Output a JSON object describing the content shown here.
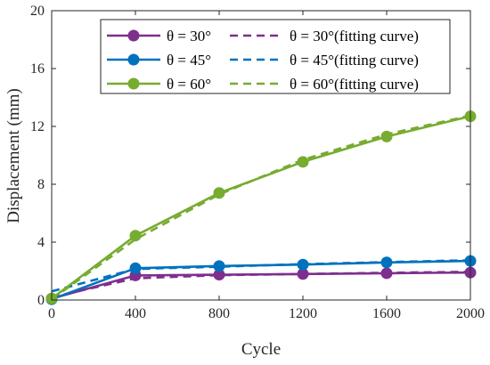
{
  "chart_data": {
    "type": "line",
    "xlabel": "Cycle",
    "ylabel": "Displacement (mm)",
    "xlim": [
      0,
      2000
    ],
    "ylim": [
      0,
      20
    ],
    "xticks": [
      0,
      400,
      800,
      1200,
      1600,
      2000
    ],
    "yticks": [
      0,
      4,
      8,
      12,
      16,
      20
    ],
    "grid": false,
    "legend_position": "top-right",
    "x": [
      0,
      400,
      800,
      1200,
      1600,
      2000
    ],
    "series": [
      {
        "name": "θ = 30°",
        "color": "#7E2F8E",
        "style": "solid-marker",
        "values": [
          0.1,
          1.7,
          1.75,
          1.8,
          1.85,
          1.9
        ]
      },
      {
        "name": "θ = 45°",
        "color": "#0072BD",
        "style": "solid-marker",
        "values": [
          0.05,
          2.2,
          2.35,
          2.45,
          2.6,
          2.7
        ]
      },
      {
        "name": "θ = 60°",
        "color": "#77AC30",
        "style": "solid-marker",
        "values": [
          0.1,
          4.45,
          7.4,
          9.55,
          11.3,
          12.7
        ]
      },
      {
        "name": "θ = 30°(fitting curve)",
        "color": "#7E2F8E",
        "style": "dashed",
        "values": [
          0.2,
          1.5,
          1.72,
          1.8,
          1.88,
          1.95
        ]
      },
      {
        "name": "θ = 45°(fitting curve)",
        "color": "#0072BD",
        "style": "dashed",
        "values": [
          0.6,
          2.15,
          2.3,
          2.48,
          2.62,
          2.75
        ]
      },
      {
        "name": "θ = 60°(fitting curve)",
        "color": "#77AC30",
        "style": "dashed",
        "values": [
          0.05,
          4.2,
          7.3,
          9.7,
          11.45,
          12.75
        ]
      }
    ]
  }
}
